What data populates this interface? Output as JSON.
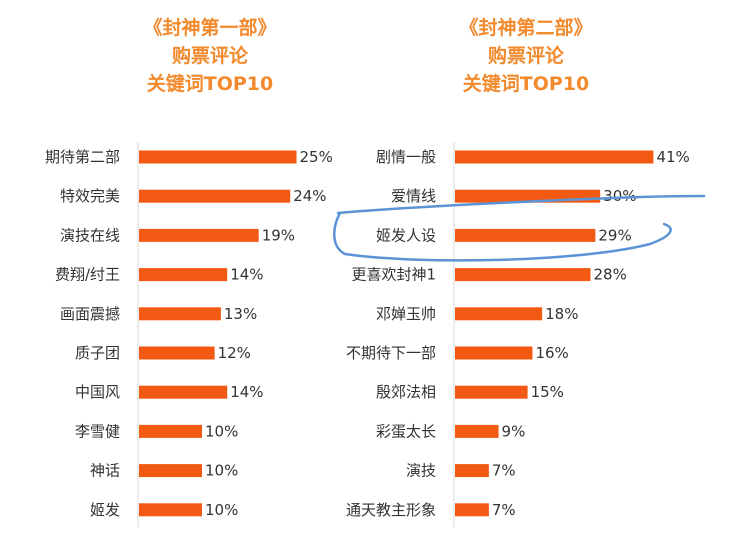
{
  "colors": {
    "bar": "#f25a14",
    "title": "#f28a2e",
    "annotation": "#5b94d6"
  },
  "chart_data": [
    {
      "type": "bar",
      "orientation": "horizontal",
      "title_lines": [
        "《封神第一部》",
        "购票评论",
        "关键词TOP10"
      ],
      "categories": [
        "期待第二部",
        "特效完美",
        "演技在线",
        "费翔/纣王",
        "画面震撼",
        "质子团",
        "中国风",
        "李雪健",
        "神话",
        "姬发"
      ],
      "values": [
        25,
        24,
        19,
        14,
        13,
        12,
        14,
        10,
        10,
        10
      ],
      "value_labels": [
        "25%",
        "24%",
        "19%",
        "14%",
        "13%",
        "12%",
        "14%",
        "10%",
        "10%",
        "10%"
      ],
      "unit": "%"
    },
    {
      "type": "bar",
      "orientation": "horizontal",
      "title_lines": [
        "《封神第二部》",
        "购票评论",
        "关键词TOP10"
      ],
      "categories": [
        "剧情一般",
        "爱情线",
        "姬发人设",
        "更喜欢封神1",
        "邓婵玉帅",
        "不期待下一部",
        "殷郊法相",
        "彩蛋太长",
        "演技",
        "通天教主形象"
      ],
      "values": [
        41,
        30,
        29,
        28,
        18,
        16,
        15,
        9,
        7,
        7
      ],
      "value_labels": [
        "41%",
        "30%",
        "29%",
        "28%",
        "18%",
        "16%",
        "15%",
        "9%",
        "7%",
        "7%"
      ],
      "unit": "%",
      "highlighted_categories": [
        "爱情线",
        "姬发人设"
      ]
    }
  ]
}
